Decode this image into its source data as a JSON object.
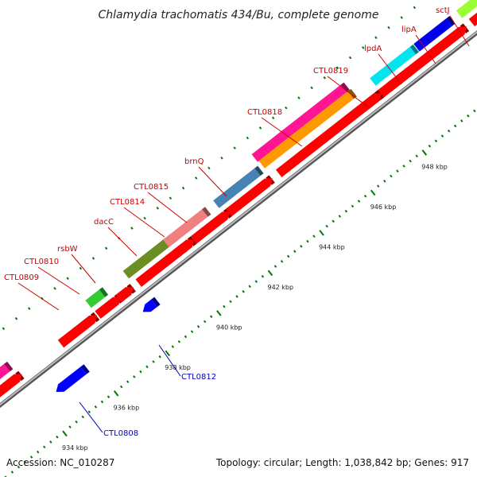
{
  "title": "Chlamydia trachomatis 434/Bu, complete genome",
  "footer": {
    "accession": "Accession: NC_010287",
    "summary": "Topology: circular; Length: 1,038,842 bp; Genes: 917"
  },
  "colors": {
    "forward_gene": "#ff0000",
    "reverse_gene": "#0000ff",
    "forward_label": "#cc0000",
    "reverse_label": "#0000bb",
    "backbone": "#888888",
    "tick": "#007700"
  },
  "axis": {
    "tick_labels": [
      "934 kbp",
      "936 kbp",
      "938 kbp",
      "940 kbp",
      "942 kbp",
      "944 kbp",
      "946 kbp",
      "948 kbp"
    ]
  },
  "genes_forward": [
    {
      "name": "CTL0809"
    },
    {
      "name": "CTL0810"
    },
    {
      "name": "rsbW"
    },
    {
      "name": "dacC"
    },
    {
      "name": "CTL0814"
    },
    {
      "name": "CTL0815"
    },
    {
      "name": "brnQ"
    },
    {
      "name": "CTL0818"
    },
    {
      "name": "CTL0819"
    },
    {
      "name": "lpdA"
    },
    {
      "name": "lipA"
    },
    {
      "name": "sctJ"
    }
  ],
  "genes_reverse": [
    {
      "name": "CTL0808"
    },
    {
      "name": "CTL0812"
    }
  ]
}
